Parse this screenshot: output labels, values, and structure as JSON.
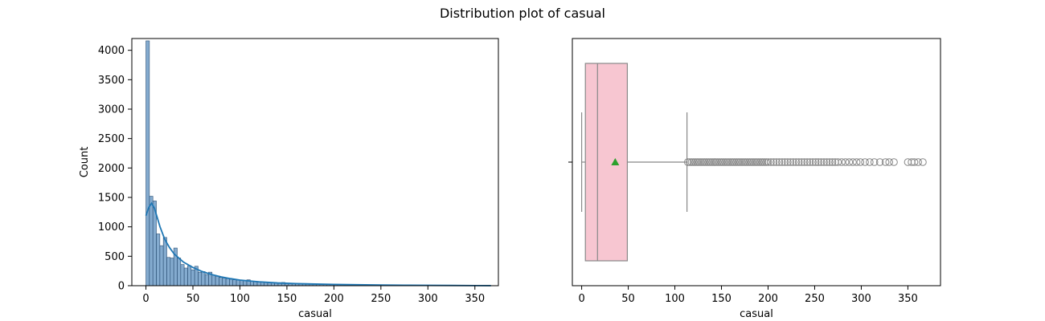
{
  "figure_title": "Distribution plot of casual",
  "colors": {
    "hist_fill": "#5b8fbf",
    "hist_edge": "#2b4f73",
    "kde_line": "#1f77b4",
    "box_fill": "#f7c6d1",
    "box_edge": "#888888",
    "mean_marker": "#2ca02c",
    "outlier": "#888888"
  },
  "chart_data": [
    {
      "type": "bar",
      "subtype": "histogram_with_kde",
      "xlabel": "casual",
      "ylabel": "Count",
      "xlim": [
        -15,
        375
      ],
      "ylim": [
        0,
        4200
      ],
      "xticks": [
        0,
        50,
        100,
        150,
        200,
        250,
        300,
        350
      ],
      "yticks": [
        0,
        500,
        1000,
        1500,
        2000,
        2500,
        3000,
        3500,
        4000
      ],
      "bin_width": 3.7,
      "bin_start": 0,
      "counts": [
        4160,
        1520,
        1440,
        880,
        680,
        820,
        480,
        470,
        640,
        470,
        360,
        300,
        340,
        270,
        330,
        230,
        240,
        190,
        230,
        180,
        160,
        140,
        130,
        120,
        110,
        100,
        95,
        90,
        85,
        100,
        75,
        70,
        65,
        60,
        55,
        52,
        50,
        48,
        45,
        55,
        42,
        40,
        38,
        36,
        34,
        32,
        30,
        29,
        28,
        27,
        26,
        25,
        24,
        23,
        22,
        21,
        20,
        19,
        18,
        17,
        16,
        15,
        15,
        14,
        14,
        13,
        13,
        12,
        12,
        11,
        11,
        10,
        10,
        9,
        9,
        8,
        8,
        7,
        7,
        7,
        6,
        6,
        6,
        5,
        5,
        5,
        4,
        4,
        4,
        4,
        3,
        3,
        3,
        3,
        2,
        2,
        2,
        2,
        2,
        1
      ],
      "kde": {
        "x": [
          0,
          3,
          6,
          9,
          12,
          15,
          20,
          25,
          30,
          40,
          50,
          60,
          70,
          80,
          90,
          100,
          120,
          140,
          160,
          180,
          200,
          225,
          250,
          275,
          300,
          325,
          350,
          367
        ],
        "y": [
          1190,
          1330,
          1400,
          1320,
          1160,
          1000,
          790,
          650,
          540,
          400,
          310,
          240,
          190,
          150,
          120,
          96,
          66,
          47,
          36,
          28,
          22,
          16,
          12,
          9,
          6,
          4,
          2,
          1
        ]
      }
    },
    {
      "type": "box",
      "xlabel": "casual",
      "xlim": [
        -10,
        385
      ],
      "xticks": [
        0,
        50,
        100,
        150,
        200,
        250,
        300,
        350
      ],
      "whisker_low": 0,
      "q1": 4,
      "median": 17,
      "q3": 49,
      "whisker_high": 113,
      "mean": 36,
      "outliers": [
        114,
        116,
        118,
        120,
        122,
        124,
        126,
        128,
        130,
        132,
        134,
        136,
        138,
        140,
        142,
        144,
        146,
        148,
        150,
        152,
        154,
        156,
        158,
        160,
        162,
        164,
        166,
        168,
        170,
        172,
        174,
        176,
        178,
        180,
        182,
        184,
        186,
        188,
        190,
        192,
        194,
        196,
        198,
        200,
        203,
        206,
        209,
        212,
        215,
        218,
        221,
        224,
        227,
        230,
        233,
        236,
        239,
        242,
        245,
        248,
        251,
        254,
        257,
        260,
        263,
        266,
        269,
        272,
        275,
        279,
        283,
        287,
        291,
        295,
        299,
        304,
        309,
        314,
        320,
        326,
        330,
        335,
        350,
        354,
        357,
        361,
        366
      ]
    }
  ]
}
